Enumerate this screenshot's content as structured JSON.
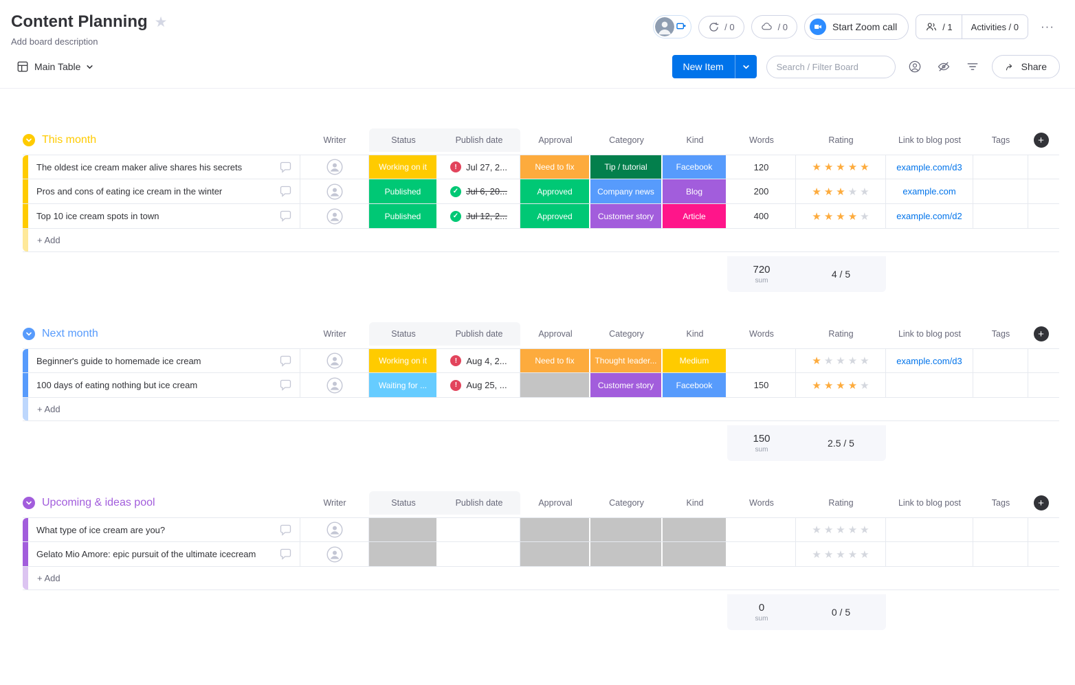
{
  "icons": {
    "star": "★",
    "more": "···",
    "plus": "+"
  },
  "header": {
    "title": "Content Planning",
    "subtitle": "Add board description",
    "automations_count": "/ 0",
    "integrations_count": "/ 0",
    "zoom_label": "Start Zoom call",
    "members_count": "/ 1",
    "activities_label": "Activities / 0"
  },
  "toolbar": {
    "view_label": "Main Table",
    "new_item_label": "New Item",
    "search_placeholder": "Search / Filter Board",
    "share_label": "Share"
  },
  "columns": {
    "writer": "Writer",
    "status": "Status",
    "publish_date": "Publish date",
    "approval": "Approval",
    "category": "Category",
    "kind": "Kind",
    "words": "Words",
    "rating": "Rating",
    "link": "Link to blog post",
    "tags": "Tags"
  },
  "groups": [
    {
      "name": "This month",
      "color": "#ffcb00",
      "color_light": "#ffe999",
      "add_label": "+ Add",
      "rows": [
        {
          "title": "The oldest ice cream maker alive shares his secrets",
          "status": {
            "label": "Working on it",
            "color": "#ffcb00"
          },
          "date": {
            "label": "Jul 27, 2...",
            "state": "overdue",
            "strike": false
          },
          "approval": {
            "label": "Need to fix",
            "color": "#fdab3d"
          },
          "category": {
            "label": "Tip / tutorial",
            "color": "#037f4c"
          },
          "kind": {
            "label": "Facebook",
            "color": "#579bfc"
          },
          "words": "120",
          "rating": 5,
          "link": "example.com/d3"
        },
        {
          "title": "Pros and cons of eating ice cream in the winter",
          "status": {
            "label": "Published",
            "color": "#00c875"
          },
          "date": {
            "label": "Jul 6, 20...",
            "state": "done",
            "strike": true
          },
          "approval": {
            "label": "Approved",
            "color": "#00c875"
          },
          "category": {
            "label": "Company news",
            "color": "#579bfc"
          },
          "kind": {
            "label": "Blog",
            "color": "#a25ddc"
          },
          "words": "200",
          "rating": 3,
          "link": "example.com"
        },
        {
          "title": "Top 10 ice cream spots in town",
          "status": {
            "label": "Published",
            "color": "#00c875"
          },
          "date": {
            "label": "Jul 12, 2...",
            "state": "done",
            "strike": true
          },
          "approval": {
            "label": "Approved",
            "color": "#00c875"
          },
          "category": {
            "label": "Customer story",
            "color": "#a25ddc"
          },
          "kind": {
            "label": "Article",
            "color": "#ff158a"
          },
          "words": "400",
          "rating": 4,
          "link": "example.com/d2"
        }
      ],
      "summary": {
        "words_sum": "720",
        "sum_label": "sum",
        "rating_summary": "4 / 5"
      }
    },
    {
      "name": "Next month",
      "color": "#579bfc",
      "color_light": "#bdd7fd",
      "add_label": "+ Add",
      "rows": [
        {
          "title": "Beginner's guide to homemade ice cream",
          "status": {
            "label": "Working on it",
            "color": "#ffcb00"
          },
          "date": {
            "label": "Aug 4, 2...",
            "state": "overdue",
            "strike": false
          },
          "approval": {
            "label": "Need to fix",
            "color": "#fdab3d"
          },
          "category": {
            "label": "Thought leader...",
            "color": "#fdab3d"
          },
          "kind": {
            "label": "Medium",
            "color": "#ffcb00"
          },
          "words": "",
          "rating": 1,
          "link": "example.com/d3"
        },
        {
          "title": "100 days of eating nothing but ice cream",
          "status": {
            "label": "Waiting for ...",
            "color": "#66ccff"
          },
          "date": {
            "label": "Aug 25, ...",
            "state": "overdue",
            "strike": false
          },
          "approval": {
            "label": "",
            "color": "#c4c4c4"
          },
          "category": {
            "label": "Customer story",
            "color": "#a25ddc"
          },
          "kind": {
            "label": "Facebook",
            "color": "#579bfc"
          },
          "words": "150",
          "rating": 4,
          "link": ""
        }
      ],
      "summary": {
        "words_sum": "150",
        "sum_label": "sum",
        "rating_summary": "2.5 / 5"
      }
    },
    {
      "name": "Upcoming & ideas pool",
      "color": "#a25ddc",
      "color_light": "#dcc4f1",
      "add_label": "+ Add",
      "rows": [
        {
          "title": "What type of ice cream are you?",
          "status": {
            "label": "",
            "color": "#c4c4c4"
          },
          "date": {
            "label": "",
            "state": "",
            "strike": false
          },
          "approval": {
            "label": "",
            "color": "#c4c4c4"
          },
          "category": {
            "label": "",
            "color": "#c4c4c4"
          },
          "kind": {
            "label": "",
            "color": "#c4c4c4"
          },
          "words": "",
          "rating": 0,
          "link": ""
        },
        {
          "title": "Gelato Mio Amore: epic pursuit of the ultimate icecream",
          "status": {
            "label": "",
            "color": "#c4c4c4"
          },
          "date": {
            "label": "",
            "state": "",
            "strike": false
          },
          "approval": {
            "label": "",
            "color": "#c4c4c4"
          },
          "category": {
            "label": "",
            "color": "#c4c4c4"
          },
          "kind": {
            "label": "",
            "color": "#c4c4c4"
          },
          "words": "",
          "rating": 0,
          "link": ""
        }
      ],
      "summary": {
        "words_sum": "0",
        "sum_label": "sum",
        "rating_summary": "0 / 5"
      }
    }
  ]
}
